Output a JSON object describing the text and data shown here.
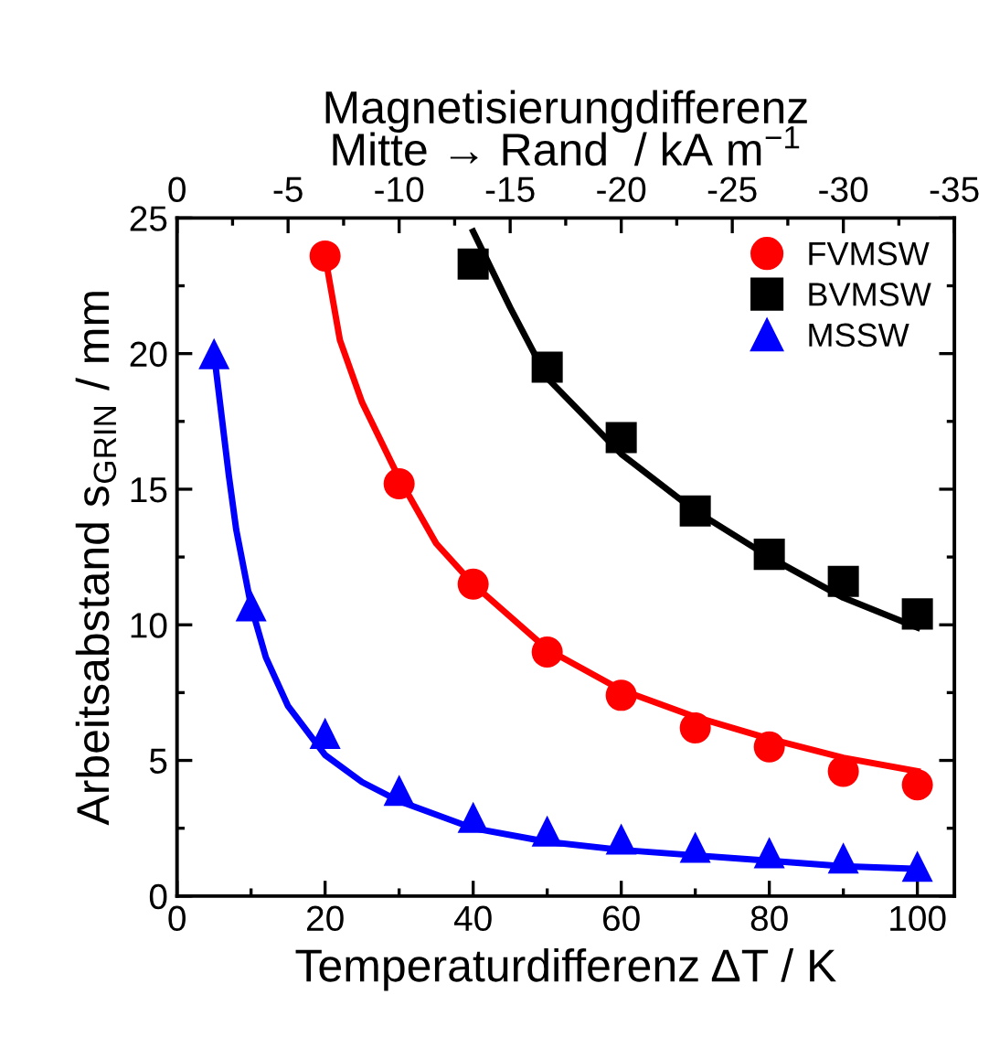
{
  "chart_data": {
    "type": "scatter",
    "xlabel": "Temperaturdifferenz ΔT / K",
    "ylabel": "Arbeitsabstand s$_{GRIN}$ / mm",
    "x2label": "Magnetisierungdifferenz\nMitte → Rand  / kA m$^{−1}$",
    "xlim": [
      0,
      105
    ],
    "ylim": [
      0,
      25
    ],
    "xticks": [
      0,
      {
        "value": 10,
        "label": null
      },
      20,
      {
        "value": 30,
        "label": null
      },
      40,
      {
        "value": 50,
        "label": null
      },
      60,
      {
        "value": 70,
        "label": null
      },
      80,
      {
        "value": 90,
        "label": null
      },
      100
    ],
    "yticks": [
      0,
      {
        "value": 2.5,
        "label": null
      },
      5,
      {
        "value": 7.5,
        "label": null
      },
      10,
      {
        "value": 12.5,
        "label": null
      },
      15,
      {
        "value": 17.5,
        "label": null
      },
      20,
      {
        "value": 22.5,
        "label": null
      },
      25
    ],
    "x2lim": [
      0,
      -35
    ],
    "x2ticks": [
      0,
      {
        "value": -2.5,
        "label": null
      },
      -5,
      {
        "value": -7.5,
        "label": null
      },
      -10,
      {
        "value": -12.5,
        "label": null
      },
      -15,
      {
        "value": -17.5,
        "label": null
      },
      -20,
      {
        "value": -22.5,
        "label": null
      },
      -25,
      {
        "value": -27.5,
        "label": null
      },
      -30,
      {
        "value": -32.5,
        "label": null
      },
      -35
    ],
    "grid": false,
    "legend": "top right",
    "series": [
      {
        "name": "FVMSW",
        "marker": "circle",
        "color": "#ff0000",
        "x": [
          20,
          30,
          40,
          50,
          60,
          70,
          80,
          90,
          100
        ],
        "values": [
          23.6,
          15.2,
          11.5,
          9.0,
          7.4,
          6.2,
          5.5,
          4.6,
          4.1
        ]
      },
      {
        "name": "BVMSW",
        "marker": "square",
        "color": "#000000",
        "x": [
          40,
          50,
          60,
          70,
          80,
          90,
          100
        ],
        "values": [
          23.3,
          19.5,
          16.9,
          14.2,
          12.6,
          11.6,
          10.4
        ]
      },
      {
        "name": "MSSW",
        "marker": "triangle",
        "color": "#0000ff",
        "x": [
          5,
          10,
          20,
          30,
          40,
          50,
          60,
          70,
          80,
          90,
          100
        ],
        "values": [
          20.0,
          10.7,
          6.0,
          3.9,
          2.9,
          2.4,
          2.1,
          1.8,
          1.6,
          1.4,
          1.1
        ]
      },
      {
        "type": "line",
        "color": "#ff0000",
        "x": [
          20,
          22,
          25,
          30,
          35,
          40,
          50,
          60,
          70,
          80,
          90,
          100
        ],
        "values": [
          23.6,
          20.5,
          18.2,
          15.4,
          13.0,
          11.5,
          9.1,
          7.6,
          6.6,
          5.8,
          5.1,
          4.6
        ]
      },
      {
        "type": "line",
        "color": "#000000",
        "x": [
          40,
          45,
          50,
          60,
          70,
          80,
          90,
          100
        ],
        "values": [
          24.5,
          21.7,
          19.1,
          16.3,
          14.2,
          12.5,
          11.0,
          9.9
        ]
      },
      {
        "type": "line",
        "color": "#0000ff",
        "x": [
          5,
          7,
          8,
          10,
          12,
          15,
          20,
          25,
          30,
          40,
          50,
          60,
          70,
          80,
          90,
          100
        ],
        "values": [
          20.0,
          15.5,
          13.5,
          10.7,
          8.8,
          7.0,
          5.2,
          4.2,
          3.5,
          2.5,
          2.0,
          1.7,
          1.5,
          1.3,
          1.1,
          1.0
        ]
      }
    ]
  }
}
